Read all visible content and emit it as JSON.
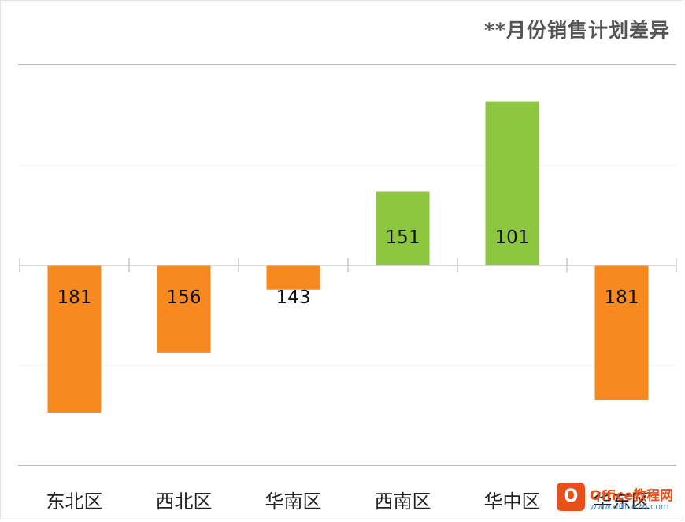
{
  "chart_data": {
    "type": "bar",
    "title": "**月份销售计划差异",
    "categories": [
      "东北区",
      "西北区",
      "华南区",
      "西南区",
      "华中区",
      "华东区"
    ],
    "values": [
      -140,
      -83,
      -23,
      70,
      156,
      -128
    ],
    "data_labels": [
      "181",
      "156",
      "143",
      "151",
      "101",
      "181"
    ],
    "xlabel": "",
    "ylabel": "",
    "ylim": [
      -190,
      190
    ],
    "positive_color": "#8dc63f",
    "negative_color": "#f7891e",
    "grid": true
  },
  "watermark": {
    "badge": "O",
    "text": "Office教程网",
    "url": "www.office26.com"
  }
}
